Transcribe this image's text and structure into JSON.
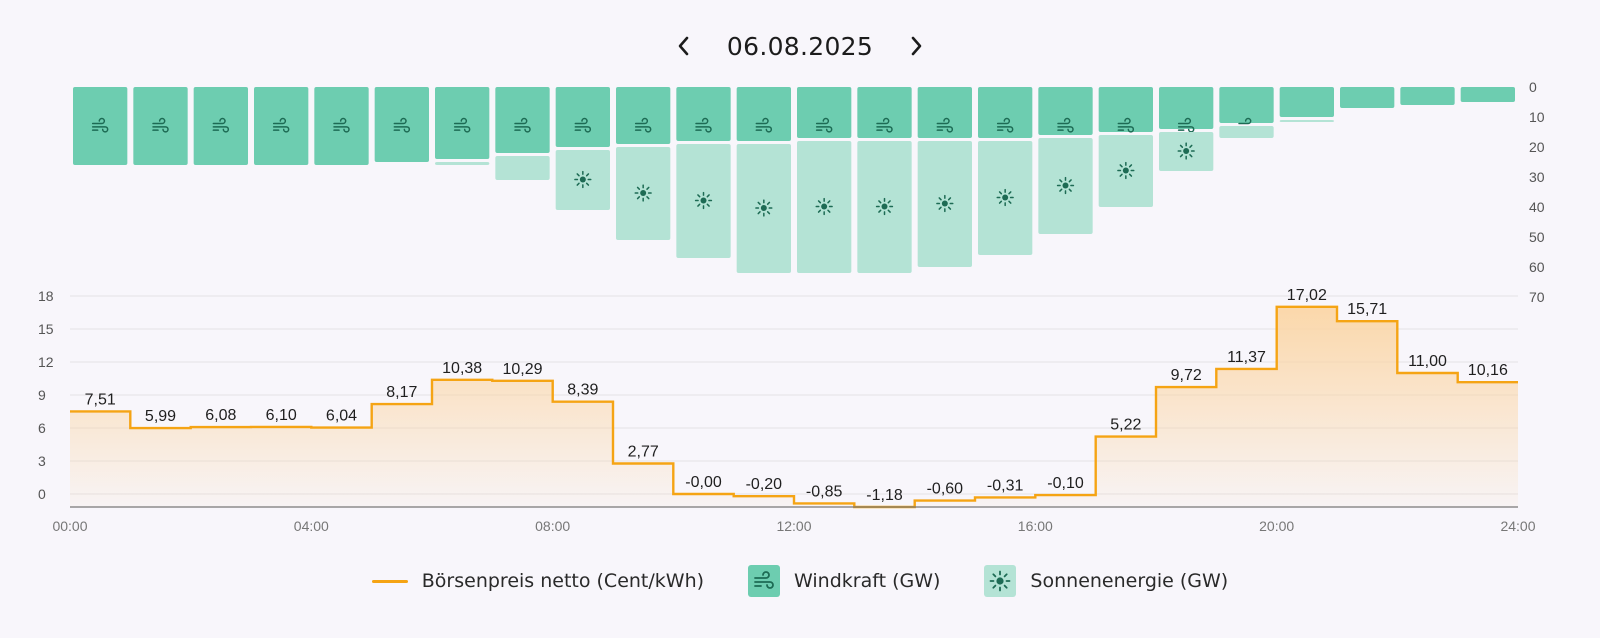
{
  "header": {
    "date": "06.08.2025"
  },
  "legend": {
    "price_label": "Börsenpreis netto (Cent/kWh)",
    "wind_label": "Windkraft (GW)",
    "solar_label": "Sonnenenergie (GW)"
  },
  "colors": {
    "price_line": "#f5a414",
    "price_fill": "#fbd6a6",
    "wind": "#6dcdb0",
    "solar": "#b4e3d5",
    "icon": "#1d6b54",
    "grid": "#e3e1e6",
    "axis": "#555555"
  },
  "chart_data": [
    {
      "type": "bar",
      "stacked": true,
      "orientation": "downward",
      "categories": [
        "00:00",
        "01:00",
        "02:00",
        "03:00",
        "04:00",
        "05:00",
        "06:00",
        "07:00",
        "08:00",
        "09:00",
        "10:00",
        "11:00",
        "12:00",
        "13:00",
        "14:00",
        "15:00",
        "16:00",
        "17:00",
        "18:00",
        "19:00",
        "20:00",
        "21:00",
        "22:00",
        "23:00"
      ],
      "series": [
        {
          "name": "Windkraft (GW)",
          "values": [
            26,
            26,
            26,
            26,
            26,
            25,
            24,
            22,
            20,
            19,
            18,
            18,
            17,
            17,
            17,
            17,
            16,
            15,
            14,
            12,
            10,
            7,
            6,
            5
          ]
        },
        {
          "name": "Sonnenenergie (GW)",
          "values": [
            0,
            0,
            0,
            0,
            0,
            0,
            2,
            9,
            21,
            32,
            39,
            44,
            45,
            45,
            43,
            39,
            33,
            25,
            14,
            5,
            1,
            0,
            0,
            0
          ]
        }
      ],
      "ylim": [
        0,
        70
      ],
      "yticks": [
        0,
        10,
        20,
        30,
        40,
        50,
        60,
        70
      ],
      "legend": "bottom"
    },
    {
      "type": "line",
      "step": true,
      "title": "",
      "series": [
        {
          "name": "Börsenpreis netto (Cent/kWh)",
          "values": [
            7.51,
            5.99,
            6.08,
            6.1,
            6.04,
            8.17,
            10.38,
            10.29,
            8.39,
            2.77,
            -0.0,
            -0.2,
            -0.85,
            -1.18,
            -0.6,
            -0.31,
            -0.1,
            5.22,
            9.72,
            11.37,
            17.02,
            15.71,
            11.0,
            10.16
          ]
        }
      ],
      "value_labels": [
        "7,51",
        "5,99",
        "6,08",
        "6,10",
        "6,04",
        "8,17",
        "10,38",
        "10,29",
        "8,39",
        "2,77",
        "-0,00",
        "-0,20",
        "-0,85",
        "-1,18",
        "-0,60",
        "-0,31",
        "-0,10",
        "5,22",
        "9,72",
        "11,37",
        "17,02",
        "15,71",
        "11,00",
        "10,16"
      ],
      "ylim": [
        -1.5,
        18
      ],
      "yticks": [
        0,
        3,
        6,
        9,
        12,
        15,
        18
      ],
      "xticks": [
        "00:00",
        "04:00",
        "08:00",
        "12:00",
        "16:00",
        "20:00",
        "24:00"
      ],
      "grid": true,
      "legend": "bottom"
    }
  ]
}
